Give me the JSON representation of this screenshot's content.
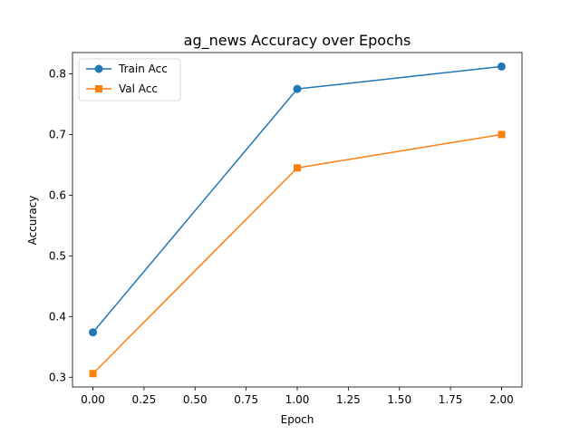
{
  "chart_data": {
    "type": "line",
    "title": "ag_news Accuracy over Epochs",
    "xlabel": "Epoch",
    "ylabel": "Accuracy",
    "xlim": [
      -0.1,
      2.1
    ],
    "ylim": [
      0.284,
      0.835
    ],
    "x_ticks": [
      0.0,
      0.25,
      0.5,
      0.75,
      1.0,
      1.25,
      1.5,
      1.75,
      2.0
    ],
    "x_tick_labels": [
      "0.00",
      "0.25",
      "0.50",
      "0.75",
      "1.00",
      "1.25",
      "1.50",
      "1.75",
      "2.00"
    ],
    "y_ticks": [
      0.3,
      0.4,
      0.5,
      0.6,
      0.7,
      0.8
    ],
    "y_tick_labels": [
      "0.3",
      "0.4",
      "0.5",
      "0.6",
      "0.7",
      "0.8"
    ],
    "grid": false,
    "legend_position": "top-left",
    "x": [
      0,
      1,
      2
    ],
    "series": [
      {
        "name": "Train Acc",
        "values": [
          0.374,
          0.775,
          0.812
        ],
        "color": "#1f77b4",
        "marker": "circle"
      },
      {
        "name": "Val Acc",
        "values": [
          0.306,
          0.645,
          0.7
        ],
        "color": "#ff7f0e",
        "marker": "square"
      }
    ]
  }
}
